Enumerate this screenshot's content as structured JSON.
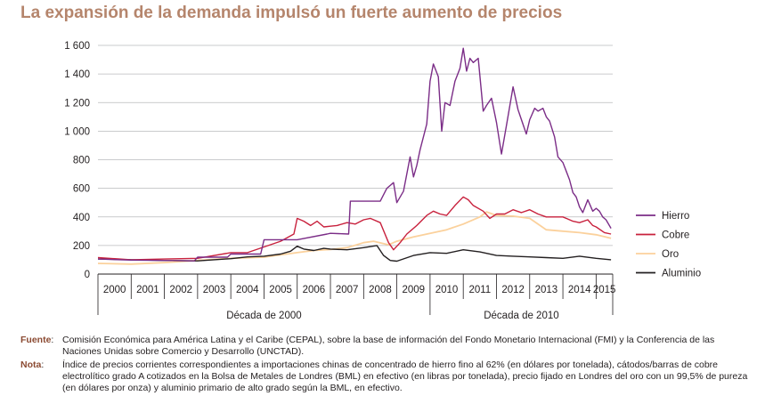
{
  "title": "La expansión de la demanda impulsó un fuerte aumento de precios",
  "chart_data": {
    "type": "line",
    "ylim": [
      0,
      1600
    ],
    "yticks": [
      0,
      200,
      400,
      600,
      800,
      1000,
      1200,
      1400,
      1600
    ],
    "ytick_labels": [
      "0",
      "200",
      "400",
      "600",
      "800",
      "1 000",
      "1 200",
      "1 400",
      "1 600"
    ],
    "xlim": [
      2000,
      2015.5
    ],
    "years": [
      "2000",
      "2001",
      "2002",
      "2003",
      "2004",
      "2005",
      "2006",
      "2007",
      "2008",
      "2009",
      "2010",
      "2011",
      "2012",
      "2013",
      "2014",
      "2015"
    ],
    "decades": [
      {
        "label": "Década de 2000",
        "from": 2000,
        "to": 2010
      },
      {
        "label": "Década de 2010",
        "from": 2010,
        "to": 2015.5
      }
    ],
    "grid": true,
    "legend_position": "right",
    "series": [
      {
        "name": "Hierro",
        "color": "#7b2d87",
        "x": [
          2000,
          2001,
          2002,
          2002.9,
          2003,
          2003.9,
          2004,
          2004.9,
          2005,
          2006,
          2006.9,
          2007,
          2007.55,
          2007.6,
          2008.5,
          2008.7,
          2008.9,
          2009.0,
          2009.2,
          2009.4,
          2009.5,
          2009.6,
          2009.7,
          2009.9,
          2010.0,
          2010.1,
          2010.25,
          2010.35,
          2010.45,
          2010.6,
          2010.75,
          2010.9,
          2011.0,
          2011.1,
          2011.2,
          2011.3,
          2011.45,
          2011.6,
          2011.7,
          2011.85,
          2012.0,
          2012.15,
          2012.3,
          2012.5,
          2012.65,
          2012.75,
          2012.9,
          2013.0,
          2013.15,
          2013.25,
          2013.4,
          2013.5,
          2013.6,
          2013.75,
          2013.85,
          2014.0,
          2014.2,
          2014.3,
          2014.4,
          2014.5,
          2014.6,
          2014.75,
          2014.9,
          2015.0,
          2015.1,
          2015.2,
          2015.3,
          2015.45
        ],
        "y": [
          105,
          98,
          95,
          92,
          118,
          118,
          140,
          140,
          240,
          240,
          280,
          285,
          280,
          510,
          510,
          600,
          640,
          500,
          580,
          820,
          680,
          760,
          870,
          1050,
          1350,
          1470,
          1380,
          1000,
          1200,
          1180,
          1350,
          1440,
          1580,
          1420,
          1510,
          1480,
          1510,
          1140,
          1180,
          1230,
          1060,
          840,
          1040,
          1310,
          1150,
          1080,
          980,
          1080,
          1160,
          1140,
          1160,
          1100,
          1070,
          960,
          820,
          780,
          660,
          570,
          540,
          470,
          430,
          520,
          440,
          460,
          440,
          400,
          380,
          320
        ]
      },
      {
        "name": "Cobre",
        "color": "#c8213d",
        "x": [
          2000,
          2001,
          2002,
          2003,
          2004,
          2004.5,
          2005,
          2005.5,
          2005.9,
          2006.0,
          2006.2,
          2006.4,
          2006.6,
          2006.8,
          2007,
          2007.2,
          2007.5,
          2007.75,
          2008.0,
          2008.2,
          2008.5,
          2008.75,
          2008.9,
          2009.1,
          2009.3,
          2009.6,
          2009.9,
          2010.1,
          2010.3,
          2010.5,
          2010.75,
          2011.0,
          2011.15,
          2011.3,
          2011.6,
          2011.8,
          2012.0,
          2012.25,
          2012.5,
          2012.75,
          2013,
          2013.25,
          2013.5,
          2013.75,
          2014,
          2014.3,
          2014.5,
          2014.75,
          2014.9,
          2015.0,
          2015.25,
          2015.45
        ],
        "y": [
          115,
          100,
          105,
          110,
          150,
          150,
          190,
          230,
          280,
          390,
          370,
          340,
          370,
          330,
          335,
          340,
          360,
          350,
          380,
          390,
          360,
          220,
          170,
          220,
          280,
          340,
          410,
          440,
          420,
          410,
          480,
          540,
          520,
          480,
          440,
          390,
          420,
          420,
          450,
          430,
          450,
          420,
          400,
          400,
          400,
          370,
          360,
          380,
          340,
          330,
          290,
          280
        ]
      },
      {
        "name": "Oro",
        "color": "#fbd19c",
        "x": [
          2000,
          2001,
          2002,
          2003,
          2004,
          2005,
          2006,
          2006.5,
          2007,
          2007.5,
          2008.0,
          2008.3,
          2008.75,
          2009.0,
          2009.5,
          2010.0,
          2010.5,
          2011.0,
          2011.5,
          2011.7,
          2012.0,
          2012.5,
          2013.0,
          2013.5,
          2014.0,
          2014.5,
          2015.0,
          2015.45
        ],
        "y": [
          75,
          70,
          80,
          95,
          110,
          118,
          150,
          165,
          172,
          185,
          220,
          230,
          205,
          230,
          260,
          285,
          310,
          350,
          400,
          435,
          410,
          405,
          390,
          310,
          300,
          290,
          275,
          250
        ]
      },
      {
        "name": "Aluminio",
        "color": "#231f20",
        "x": [
          2000,
          2001,
          2002,
          2003,
          2004,
          2004.5,
          2005,
          2005.5,
          2005.8,
          2006.0,
          2006.2,
          2006.5,
          2006.8,
          2007,
          2007.5,
          2008.0,
          2008.4,
          2008.6,
          2008.8,
          2009.0,
          2009.5,
          2010.0,
          2010.5,
          2011.0,
          2011.5,
          2012,
          2012.5,
          2013,
          2013.5,
          2014,
          2014.5,
          2015,
          2015.45
        ],
        "y": [
          105,
          100,
          95,
          92,
          108,
          120,
          125,
          140,
          160,
          195,
          175,
          165,
          180,
          175,
          170,
          185,
          200,
          130,
          95,
          90,
          130,
          150,
          145,
          170,
          155,
          130,
          125,
          120,
          115,
          110,
          125,
          110,
          100
        ]
      }
    ]
  }
}
